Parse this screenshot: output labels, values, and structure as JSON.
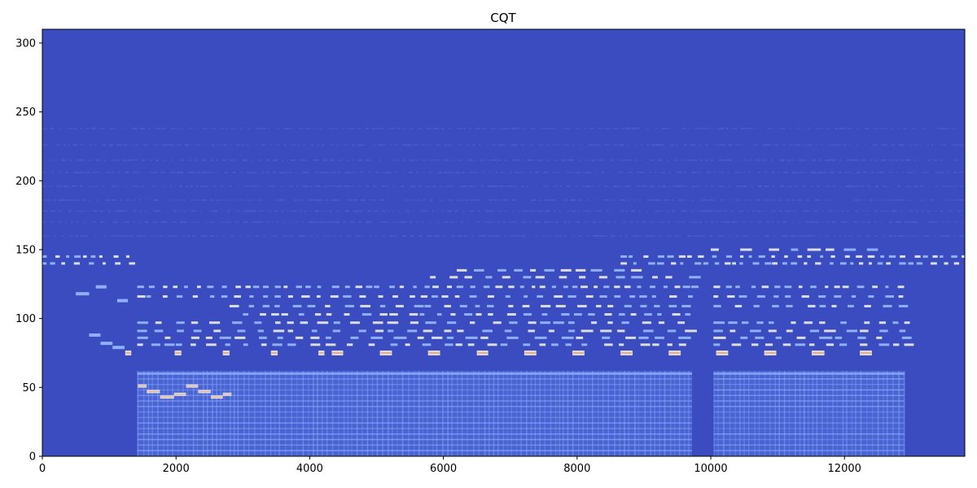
{
  "chart_data": {
    "type": "heatmap",
    "title": "CQT",
    "xlabel": "",
    "ylabel": "",
    "xlim": [
      0,
      13800
    ],
    "ylim": [
      0,
      310
    ],
    "x_ticks": [
      0,
      2000,
      4000,
      6000,
      8000,
      10000,
      12000
    ],
    "y_ticks": [
      0,
      50,
      100,
      150,
      200,
      250,
      300
    ],
    "x_tick_labels": [
      "0",
      "2000",
      "4000",
      "6000",
      "8000",
      "10000",
      "12000"
    ],
    "y_tick_labels": [
      "0",
      "50",
      "100",
      "150",
      "200",
      "250",
      "300"
    ],
    "colormap": "coolwarm",
    "colors": {
      "background": "#3b4cc0",
      "low_energy": "#4a63d3",
      "mid_energy": "#8fb0fb",
      "high_energy": "#dcdddd",
      "peak_energy": "#f0a98b"
    },
    "dense_regions": [
      {
        "x": [
          1420,
          9720
        ],
        "y": [
          0,
          62
        ],
        "level": "mid"
      },
      {
        "x": [
          10040,
          12900
        ],
        "y": [
          0,
          62
        ],
        "level": "mid"
      }
    ],
    "silent_gaps": [
      {
        "x": [
          9720,
          10040
        ],
        "y": [
          0,
          62
        ]
      }
    ],
    "bass_notes": [
      {
        "x": [
          1430,
          1560
        ],
        "y": 51
      },
      {
        "x": [
          1560,
          1760
        ],
        "y": 47
      },
      {
        "x": [
          1760,
          1970
        ],
        "y": 43
      },
      {
        "x": [
          1970,
          2150
        ],
        "y": 45
      },
      {
        "x": [
          2150,
          2330
        ],
        "y": 51
      },
      {
        "x": [
          2330,
          2520
        ],
        "y": 47
      },
      {
        "x": [
          2520,
          2700
        ],
        "y": 43
      },
      {
        "x": [
          2700,
          2830
        ],
        "y": 45
      }
    ],
    "peak_notes": [
      {
        "x": [
          1240,
          1330
        ],
        "y": 75
      },
      {
        "x": [
          1980,
          2080
        ],
        "y": 75
      },
      {
        "x": [
          2700,
          2800
        ],
        "y": 75
      },
      {
        "x": [
          3420,
          3520
        ],
        "y": 75
      },
      {
        "x": [
          4130,
          4220
        ],
        "y": 75
      },
      {
        "x": [
          4330,
          4500
        ],
        "y": 75
      },
      {
        "x": [
          5050,
          5230
        ],
        "y": 75
      },
      {
        "x": [
          5770,
          5950
        ],
        "y": 75
      },
      {
        "x": [
          6500,
          6670
        ],
        "y": 75
      },
      {
        "x": [
          7210,
          7390
        ],
        "y": 75
      },
      {
        "x": [
          7930,
          8110
        ],
        "y": 75
      },
      {
        "x": [
          8650,
          8830
        ],
        "y": 75
      },
      {
        "x": [
          9370,
          9550
        ],
        "y": 75
      },
      {
        "x": [
          10080,
          10260
        ],
        "y": 75
      },
      {
        "x": [
          10800,
          10980
        ],
        "y": 75
      },
      {
        "x": [
          11510,
          11700
        ],
        "y": 75
      },
      {
        "x": [
          12230,
          12410
        ],
        "y": 75
      }
    ],
    "intro_notes": [
      {
        "x": [
          700,
          870
        ],
        "y": 88
      },
      {
        "x": [
          870,
          1050
        ],
        "y": 82
      },
      {
        "x": [
          1050,
          1230
        ],
        "y": 79
      },
      {
        "x": [
          1120,
          1280
        ],
        "y": 113
      },
      {
        "x": [
          800,
          960
        ],
        "y": 123
      },
      {
        "x": [
          500,
          700
        ],
        "y": 118
      }
    ],
    "arpeggio_rows": [
      {
        "y": 145,
        "x": [
          0,
          1420
        ],
        "spacing": 150
      },
      {
        "y": 140,
        "x": [
          0,
          1420
        ],
        "spacing": 150
      },
      {
        "y": 145,
        "x": [
          8650,
          13800
        ],
        "spacing": 150
      },
      {
        "y": 140,
        "x": [
          8650,
          13800
        ],
        "spacing": 150
      }
    ],
    "melody_rows": [
      {
        "y": 123,
        "x": [
          1420,
          9720
        ],
        "spacing": 160
      },
      {
        "y": 116,
        "x": [
          1420,
          9720
        ],
        "spacing": 190
      },
      {
        "y": 109,
        "x": [
          2800,
          9720
        ],
        "spacing": 220
      },
      {
        "y": 103,
        "x": [
          3000,
          9720
        ],
        "spacing": 200
      },
      {
        "y": 97,
        "x": [
          1420,
          9720
        ],
        "spacing": 240
      },
      {
        "y": 91,
        "x": [
          1420,
          9720
        ],
        "spacing": 260
      },
      {
        "y": 86,
        "x": [
          1420,
          9720
        ],
        "spacing": 280
      },
      {
        "y": 81,
        "x": [
          1420,
          9720
        ],
        "spacing": 230
      },
      {
        "y": 123,
        "x": [
          10040,
          12900
        ],
        "spacing": 160
      },
      {
        "y": 116,
        "x": [
          10040,
          12900
        ],
        "spacing": 190
      },
      {
        "y": 109,
        "x": [
          10040,
          12900
        ],
        "spacing": 220
      },
      {
        "y": 97,
        "x": [
          10040,
          12900
        ],
        "spacing": 240
      },
      {
        "y": 91,
        "x": [
          10040,
          12900
        ],
        "spacing": 260
      },
      {
        "y": 86,
        "x": [
          10040,
          12900
        ],
        "spacing": 280
      },
      {
        "y": 81,
        "x": [
          10040,
          12900
        ],
        "spacing": 230
      },
      {
        "y": 130,
        "x": [
          5800,
          9720
        ],
        "spacing": 250
      },
      {
        "y": 135,
        "x": [
          6200,
          9000
        ],
        "spacing": 270
      },
      {
        "y": 150,
        "x": [
          10000,
          12600
        ],
        "spacing": 300
      }
    ],
    "harmonic_rows": [
      {
        "y": 160,
        "x": [
          0,
          13800
        ]
      },
      {
        "y": 170,
        "x": [
          0,
          13800
        ]
      },
      {
        "y": 178,
        "x": [
          0,
          13800
        ]
      },
      {
        "y": 186,
        "x": [
          0,
          13800
        ]
      },
      {
        "y": 196,
        "x": [
          0,
          13800
        ]
      },
      {
        "y": 206,
        "x": [
          0,
          13800
        ]
      },
      {
        "y": 215,
        "x": [
          0,
          13800
        ]
      },
      {
        "y": 226,
        "x": [
          0,
          13800
        ]
      },
      {
        "y": 238,
        "x": [
          0,
          13800
        ]
      }
    ]
  }
}
